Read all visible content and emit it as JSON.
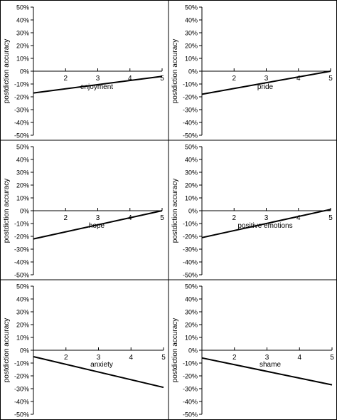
{
  "chart_data": [
    {
      "type": "line",
      "annotation": "enjoyment",
      "ylabel": "postdiction accuracy",
      "xlim": [
        1,
        5
      ],
      "ylim": [
        -0.5,
        0.5
      ],
      "xticks": [
        "2",
        "3",
        "4",
        "5"
      ],
      "yticks": [
        "50%",
        "40%",
        "30%",
        "20%",
        "10%",
        "0%",
        "-10%",
        "-20%",
        "-30%",
        "-40%",
        "-50%"
      ],
      "series": [
        {
          "x": [
            1,
            5
          ],
          "y": [
            -0.17,
            -0.04
          ]
        }
      ]
    },
    {
      "type": "line",
      "annotation": "pride",
      "ylabel": "postdiction accuracy",
      "xlim": [
        1,
        5
      ],
      "ylim": [
        -0.5,
        0.5
      ],
      "xticks": [
        "2",
        "3",
        "4",
        "5"
      ],
      "yticks": [
        "50%",
        "40%",
        "30%",
        "20%",
        "10%",
        "0%",
        "-10%",
        "-20%",
        "-30%",
        "-40%",
        "-50%"
      ],
      "series": [
        {
          "x": [
            1,
            5
          ],
          "y": [
            -0.18,
            0.0
          ]
        }
      ]
    },
    {
      "type": "line",
      "annotation": "hope",
      "ylabel": "postdiction accuracy",
      "xlim": [
        1,
        5
      ],
      "ylim": [
        -0.5,
        0.5
      ],
      "xticks": [
        "2",
        "3",
        "4",
        "5"
      ],
      "yticks": [
        "50%",
        "40%",
        "30%",
        "20%",
        "10%",
        "0%",
        "-10%",
        "-20%",
        "-30%",
        "-40%",
        "-50%"
      ],
      "series": [
        {
          "x": [
            1,
            5
          ],
          "y": [
            -0.22,
            0.0
          ]
        }
      ]
    },
    {
      "type": "line",
      "annotation": "positive emotions",
      "ylabel": "postdiction accuracy",
      "xlim": [
        1,
        5
      ],
      "ylim": [
        -0.5,
        0.5
      ],
      "xticks": [
        "2",
        "3",
        "4",
        "5"
      ],
      "yticks": [
        "50%",
        "40%",
        "30%",
        "20%",
        "10%",
        "0%",
        "-10%",
        "-20%",
        "-30%",
        "-40%",
        "-50%"
      ],
      "series": [
        {
          "x": [
            1,
            5
          ],
          "y": [
            -0.21,
            0.01
          ]
        }
      ]
    },
    {
      "type": "line",
      "annotation": "anxiety",
      "ylabel": "postdiction accuracy",
      "xlim": [
        1,
        5
      ],
      "ylim": [
        -0.5,
        0.5
      ],
      "xticks": [
        "2",
        "3",
        "4",
        "5"
      ],
      "yticks": [
        "50%",
        "40%",
        "30%",
        "20%",
        "10%",
        "0%",
        "-10%",
        "-20%",
        "-30%",
        "-40%",
        "-50%"
      ],
      "series": [
        {
          "x": [
            1,
            5
          ],
          "y": [
            -0.05,
            -0.29
          ]
        }
      ]
    },
    {
      "type": "line",
      "annotation": "shame",
      "ylabel": "postdiction accuracy",
      "xlim": [
        1,
        5
      ],
      "ylim": [
        -0.5,
        0.5
      ],
      "xticks": [
        "2",
        "3",
        "4",
        "5"
      ],
      "yticks": [
        "50%",
        "40%",
        "30%",
        "20%",
        "10%",
        "0%",
        "-10%",
        "-20%",
        "-30%",
        "-40%",
        "-50%"
      ],
      "series": [
        {
          "x": [
            1,
            5
          ],
          "y": [
            -0.06,
            -0.27
          ]
        }
      ]
    }
  ]
}
